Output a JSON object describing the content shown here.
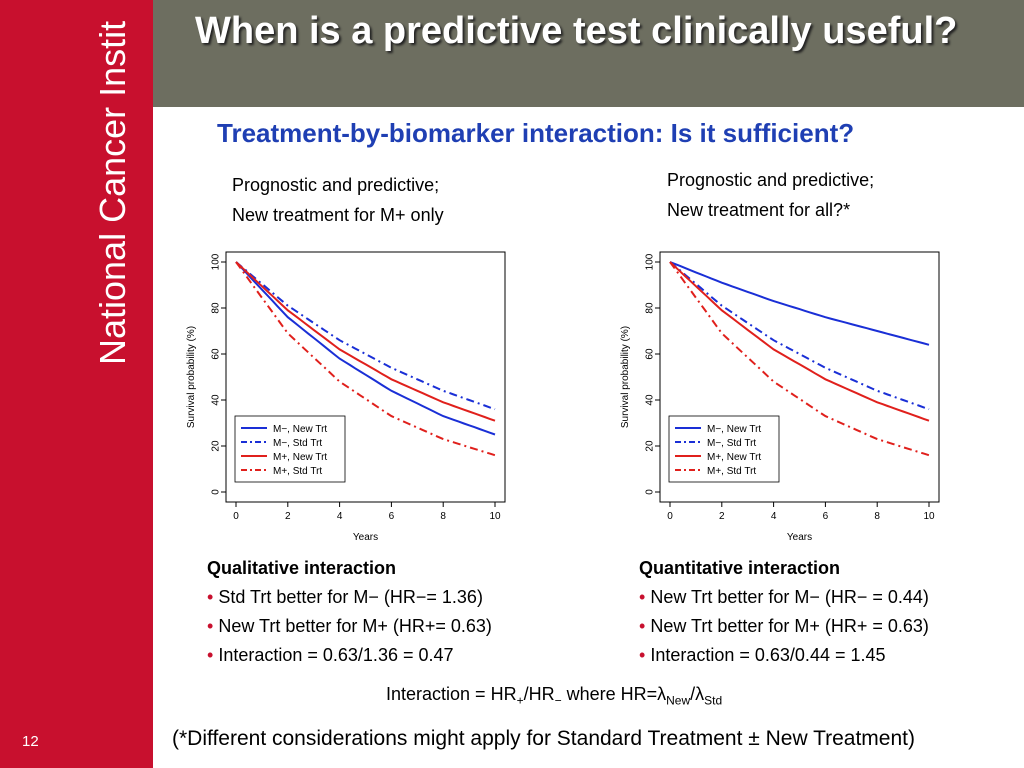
{
  "brand": "National Cancer Institute",
  "slide_number": "12",
  "title": "When is a predictive test clinically useful?",
  "subtitle": "Treatment-by-biomarker interaction:  Is it sufficient?",
  "left_caption": [
    "Prognostic and predictive;",
    "New treatment for M+ only"
  ],
  "right_caption": [
    "Prognostic and predictive;",
    "New treatment for all?*"
  ],
  "colors": {
    "sidebar": "#c8102e",
    "titlebar": "#6d6e60",
    "subtitle": "#1f3fb3",
    "series_blue": "#1a2fd6",
    "series_red": "#e0201c"
  },
  "chart_data": [
    {
      "type": "line",
      "xlabel": "Years",
      "ylabel": "Survival probability (%)",
      "xlim": [
        0,
        10
      ],
      "ylim": [
        0,
        100
      ],
      "xticks": [
        "0",
        "2",
        "4",
        "6",
        "8",
        "10"
      ],
      "yticks": [
        "0",
        "20",
        "40",
        "60",
        "80",
        "100"
      ],
      "legend_position": "bottom-left",
      "series": [
        {
          "name": "M−, New Trt",
          "color": "#1a2fd6",
          "dash": "solid",
          "x": [
            0,
            2,
            4,
            6,
            8,
            10
          ],
          "y": [
            100,
            76,
            58,
            44,
            33,
            25
          ]
        },
        {
          "name": "M−, Std Trt",
          "color": "#1a2fd6",
          "dash": "dashdot",
          "x": [
            0,
            2,
            4,
            6,
            8,
            10
          ],
          "y": [
            100,
            81,
            66,
            54,
            44,
            36
          ]
        },
        {
          "name": "M+, New Trt",
          "color": "#e0201c",
          "dash": "solid",
          "x": [
            0,
            2,
            4,
            6,
            8,
            10
          ],
          "y": [
            100,
            79,
            62,
            49,
            39,
            31
          ]
        },
        {
          "name": "M+, Std Trt",
          "color": "#e0201c",
          "dash": "dashdot",
          "x": [
            0,
            2,
            4,
            6,
            8,
            10
          ],
          "y": [
            100,
            69,
            48,
            33,
            23,
            16
          ]
        }
      ]
    },
    {
      "type": "line",
      "xlabel": "Years",
      "ylabel": "Survival probability (%)",
      "xlim": [
        0,
        10
      ],
      "ylim": [
        0,
        100
      ],
      "xticks": [
        "0",
        "2",
        "4",
        "6",
        "8",
        "10"
      ],
      "yticks": [
        "0",
        "20",
        "40",
        "60",
        "80",
        "100"
      ],
      "legend_position": "bottom-left",
      "series": [
        {
          "name": "M−, New Trt",
          "color": "#1a2fd6",
          "dash": "solid",
          "x": [
            0,
            2,
            4,
            6,
            8,
            10
          ],
          "y": [
            100,
            91,
            83,
            76,
            70,
            64
          ]
        },
        {
          "name": "M−, Std Trt",
          "color": "#1a2fd6",
          "dash": "dashdot",
          "x": [
            0,
            2,
            4,
            6,
            8,
            10
          ],
          "y": [
            100,
            81,
            66,
            54,
            44,
            36
          ]
        },
        {
          "name": "M+, New Trt",
          "color": "#e0201c",
          "dash": "solid",
          "x": [
            0,
            2,
            4,
            6,
            8,
            10
          ],
          "y": [
            100,
            79,
            62,
            49,
            39,
            31
          ]
        },
        {
          "name": "M+, Std Trt",
          "color": "#e0201c",
          "dash": "dashdot",
          "x": [
            0,
            2,
            4,
            6,
            8,
            10
          ],
          "y": [
            100,
            69,
            48,
            33,
            23,
            16
          ]
        }
      ]
    }
  ],
  "left_summary": {
    "heading": "Qualitative interaction",
    "bullet": "•",
    "lines": [
      "Std Trt better for M−  (HR−= 1.36)",
      "New Trt better for M+  (HR+= 0.63)",
      "Interaction = 0.63/1.36 = 0.47"
    ]
  },
  "right_summary": {
    "heading": "Quantitative interaction",
    "bullet": "•",
    "lines": [
      "New Trt better for M−  (HR− = 0.44)",
      "New Trt better for M+  (HR+ = 0.63)",
      "Interaction = 0.63/0.44 = 1.45"
    ]
  },
  "formula": {
    "lhs": "Interaction = HR",
    "sub_plus": "+",
    "slash": "/HR",
    "sub_minus": "−",
    "where": " where HR=",
    "lambda": "λ",
    "sub_new": "New",
    "sep": "/",
    "sub_std": "Std"
  },
  "footnote": "(*Different considerations might apply for Standard Treatment  ±  New Treatment)"
}
